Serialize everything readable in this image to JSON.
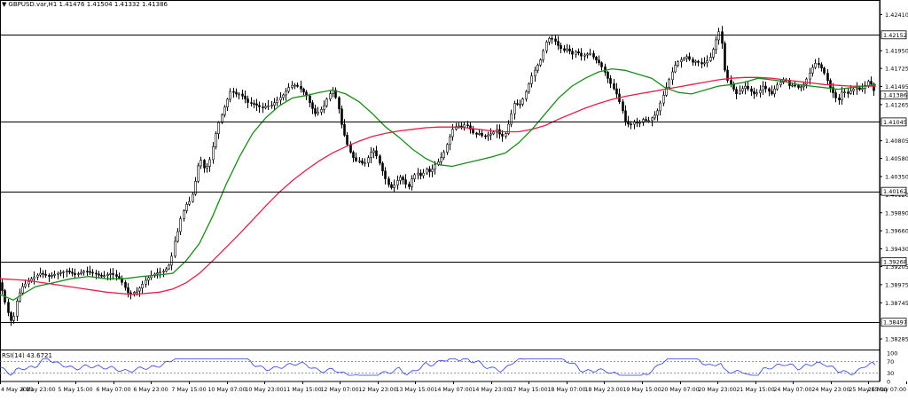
{
  "header": {
    "symbol_label": "GBPUSD.var,H1",
    "ohlc": "1.41476 1.41504 1.41332 1.41386",
    "dropdown_icon": "triangle-down-icon"
  },
  "rsi": {
    "label": "RSI(14) 43.6721",
    "levels": [
      30,
      70
    ],
    "axis_labels": [
      "100",
      "70",
      "30",
      "0"
    ],
    "line_color": "#2f3fd6"
  },
  "colors": {
    "candle": "#000000",
    "ma_fast": "#1a8a1a",
    "ma_slow": "#e0204a",
    "level_line": "#000000"
  },
  "chart_data": {
    "type": "candlestick",
    "symbol": "GBPUSD.var",
    "timeframe": "H1",
    "ylim": [
      1.3815,
      1.4255
    ],
    "y_ticks": [
      "1.42410",
      "1.42152",
      "1.41950",
      "1.41725",
      "1.41495",
      "1.41386",
      "1.41265",
      "1.41045",
      "1.40805",
      "1.40580",
      "1.40350",
      "1.40162",
      "1.40120",
      "1.39890",
      "1.39660",
      "1.39430",
      "1.39268",
      "1.39205",
      "1.38975",
      "1.38745",
      "1.38497",
      "1.38285"
    ],
    "highlighted_levels": [
      1.42152,
      1.41045,
      1.40162,
      1.39268,
      1.38497
    ],
    "current_price": 1.41386,
    "x_labels": [
      "4 May 2021",
      "4 May 23:00",
      "5 May 15:00",
      "6 May 07:00",
      "6 May 23:00",
      "7 May 15:00",
      "10 May 07:00",
      "10 May 23:00",
      "11 May 15:00",
      "12 May 07:00",
      "12 May 23:00",
      "13 May 15:00",
      "14 May 07:00",
      "14 May 23:00",
      "17 May 15:00",
      "18 May 07:00",
      "18 May 23:00",
      "19 May 15:00",
      "20 May 07:00",
      "20 May 23:00",
      "21 May 15:00",
      "24 May 07:00",
      "24 May 23:00",
      "25 May 15:00",
      "26 May 07:00"
    ],
    "price_path": [
      [
        0,
        1.39
      ],
      [
        4,
        1.388
      ],
      [
        8,
        1.3865
      ],
      [
        10,
        1.3855
      ],
      [
        13,
        1.385
      ],
      [
        16,
        1.386
      ],
      [
        19,
        1.388
      ],
      [
        25,
        1.3895
      ],
      [
        35,
        1.3905
      ],
      [
        45,
        1.3912
      ],
      [
        55,
        1.3908
      ],
      [
        65,
        1.3912
      ],
      [
        75,
        1.3915
      ],
      [
        85,
        1.391
      ],
      [
        95,
        1.3915
      ],
      [
        105,
        1.3912
      ],
      [
        115,
        1.3908
      ],
      [
        125,
        1.3912
      ],
      [
        135,
        1.3905
      ],
      [
        145,
        1.3885
      ],
      [
        155,
        1.389
      ],
      [
        165,
        1.3905
      ],
      [
        175,
        1.3912
      ],
      [
        185,
        1.3915
      ],
      [
        192,
        1.3925
      ],
      [
        196,
        1.395
      ],
      [
        200,
        1.3965
      ],
      [
        204,
        1.3985
      ],
      [
        210,
        1.4
      ],
      [
        215,
        1.4005
      ],
      [
        220,
        1.403
      ],
      [
        225,
        1.406
      ],
      [
        230,
        1.4045
      ],
      [
        235,
        1.405
      ],
      [
        240,
        1.4075
      ],
      [
        245,
        1.41
      ],
      [
        250,
        1.4115
      ],
      [
        255,
        1.413
      ],
      [
        260,
        1.4145
      ],
      [
        265,
        1.414
      ],
      [
        270,
        1.414
      ],
      [
        275,
        1.4135
      ],
      [
        280,
        1.4128
      ],
      [
        285,
        1.4128
      ],
      [
        290,
        1.4125
      ],
      [
        295,
        1.4122
      ],
      [
        300,
        1.4125
      ],
      [
        305,
        1.4125
      ],
      [
        310,
        1.413
      ],
      [
        315,
        1.4135
      ],
      [
        320,
        1.414
      ],
      [
        325,
        1.4148
      ],
      [
        330,
        1.4152
      ],
      [
        335,
        1.415
      ],
      [
        340,
        1.4145
      ],
      [
        345,
        1.4138
      ],
      [
        350,
        1.4125
      ],
      [
        355,
        1.4115
      ],
      [
        360,
        1.4118
      ],
      [
        365,
        1.4125
      ],
      [
        370,
        1.4138
      ],
      [
        375,
        1.4145
      ],
      [
        380,
        1.413
      ],
      [
        385,
        1.41
      ],
      [
        390,
        1.408
      ],
      [
        395,
        1.4065
      ],
      [
        400,
        1.4055
      ],
      [
        405,
        1.4055
      ],
      [
        410,
        1.405
      ],
      [
        415,
        1.406
      ],
      [
        420,
        1.407
      ],
      [
        425,
        1.406
      ],
      [
        430,
        1.4045
      ],
      [
        435,
        1.403
      ],
      [
        440,
        1.402
      ],
      [
        445,
        1.4025
      ],
      [
        450,
        1.4035
      ],
      [
        455,
        1.403
      ],
      [
        460,
        1.402
      ],
      [
        465,
        1.4035
      ],
      [
        470,
        1.404
      ],
      [
        475,
        1.4035
      ],
      [
        480,
        1.4045
      ],
      [
        485,
        1.404
      ],
      [
        490,
        1.405
      ],
      [
        495,
        1.4055
      ],
      [
        500,
        1.4065
      ],
      [
        505,
        1.408
      ],
      [
        510,
        1.4095
      ],
      [
        515,
        1.41
      ],
      [
        520,
        1.4098
      ],
      [
        525,
        1.4102
      ],
      [
        530,
        1.4095
      ],
      [
        535,
        1.4088
      ],
      [
        540,
        1.409
      ],
      [
        545,
        1.4085
      ],
      [
        550,
        1.4088
      ],
      [
        555,
        1.409
      ],
      [
        560,
        1.4095
      ],
      [
        565,
        1.4085
      ],
      [
        570,
        1.409
      ],
      [
        575,
        1.411
      ],
      [
        580,
        1.413
      ],
      [
        585,
        1.4125
      ],
      [
        590,
        1.4135
      ],
      [
        595,
        1.415
      ],
      [
        600,
        1.4165
      ],
      [
        605,
        1.4175
      ],
      [
        610,
        1.4185
      ],
      [
        615,
        1.4205
      ],
      [
        620,
        1.4212
      ],
      [
        625,
        1.4208
      ],
      [
        630,
        1.42
      ],
      [
        635,
        1.4195
      ],
      [
        640,
        1.4198
      ],
      [
        645,
        1.419
      ],
      [
        650,
        1.4195
      ],
      [
        655,
        1.4188
      ],
      [
        660,
        1.419
      ],
      [
        665,
        1.4192
      ],
      [
        670,
        1.4185
      ],
      [
        675,
        1.418
      ],
      [
        680,
        1.4172
      ],
      [
        685,
        1.416
      ],
      [
        690,
        1.415
      ],
      [
        695,
        1.414
      ],
      [
        700,
        1.4125
      ],
      [
        705,
        1.4105
      ],
      [
        710,
        1.41
      ],
      [
        715,
        1.4105
      ],
      [
        720,
        1.4102
      ],
      [
        725,
        1.4108
      ],
      [
        730,
        1.4105
      ],
      [
        735,
        1.411
      ],
      [
        740,
        1.4115
      ],
      [
        745,
        1.413
      ],
      [
        750,
        1.4145
      ],
      [
        755,
        1.416
      ],
      [
        760,
        1.4175
      ],
      [
        765,
        1.4182
      ],
      [
        770,
        1.4185
      ],
      [
        775,
        1.4188
      ],
      [
        780,
        1.418
      ],
      [
        785,
        1.4182
      ],
      [
        790,
        1.4178
      ],
      [
        795,
        1.418
      ],
      [
        800,
        1.4185
      ],
      [
        805,
        1.42
      ],
      [
        810,
        1.422
      ],
      [
        813,
        1.4215
      ],
      [
        816,
        1.4175
      ],
      [
        820,
        1.4158
      ],
      [
        825,
        1.415
      ],
      [
        830,
        1.414
      ],
      [
        835,
        1.4145
      ],
      [
        840,
        1.415
      ],
      [
        845,
        1.4145
      ],
      [
        850,
        1.414
      ],
      [
        855,
        1.4142
      ],
      [
        860,
        1.415
      ],
      [
        865,
        1.4145
      ],
      [
        870,
        1.414
      ],
      [
        875,
        1.415
      ],
      [
        880,
        1.4155
      ],
      [
        885,
        1.416
      ],
      [
        890,
        1.415
      ],
      [
        895,
        1.4152
      ],
      [
        900,
        1.4148
      ],
      [
        905,
        1.415
      ],
      [
        910,
        1.416
      ],
      [
        915,
        1.4172
      ],
      [
        920,
        1.418
      ],
      [
        925,
        1.4175
      ],
      [
        930,
        1.4165
      ],
      [
        935,
        1.415
      ],
      [
        940,
        1.414
      ],
      [
        945,
        1.413
      ],
      [
        950,
        1.4145
      ],
      [
        955,
        1.414
      ],
      [
        960,
        1.4145
      ],
      [
        965,
        1.4148
      ],
      [
        970,
        1.4145
      ],
      [
        975,
        1.415
      ],
      [
        980,
        1.4158
      ],
      [
        985,
        1.4145
      ],
      [
        988,
        1.4139
      ]
    ],
    "ma_fast_path": [
      [
        0,
        1.3885
      ],
      [
        15,
        1.3878
      ],
      [
        25,
        1.3885
      ],
      [
        40,
        1.3895
      ],
      [
        60,
        1.39
      ],
      [
        80,
        1.3905
      ],
      [
        100,
        1.3908
      ],
      [
        120,
        1.3905
      ],
      [
        140,
        1.3905
      ],
      [
        160,
        1.3908
      ],
      [
        180,
        1.391
      ],
      [
        195,
        1.3912
      ],
      [
        210,
        1.3928
      ],
      [
        225,
        1.395
      ],
      [
        240,
        1.3985
      ],
      [
        255,
        1.4025
      ],
      [
        270,
        1.406
      ],
      [
        285,
        1.409
      ],
      [
        300,
        1.411
      ],
      [
        315,
        1.4125
      ],
      [
        330,
        1.4135
      ],
      [
        345,
        1.4138
      ],
      [
        360,
        1.4142
      ],
      [
        375,
        1.4145
      ],
      [
        390,
        1.414
      ],
      [
        405,
        1.413
      ],
      [
        420,
        1.4115
      ],
      [
        435,
        1.4098
      ],
      [
        450,
        1.4085
      ],
      [
        465,
        1.407
      ],
      [
        480,
        1.4058
      ],
      [
        495,
        1.405
      ],
      [
        510,
        1.4048
      ],
      [
        525,
        1.4052
      ],
      [
        540,
        1.4056
      ],
      [
        555,
        1.406
      ],
      [
        570,
        1.4065
      ],
      [
        585,
        1.4078
      ],
      [
        600,
        1.4095
      ],
      [
        615,
        1.4115
      ],
      [
        630,
        1.4135
      ],
      [
        645,
        1.415
      ],
      [
        660,
        1.416
      ],
      [
        675,
        1.4168
      ],
      [
        690,
        1.4172
      ],
      [
        705,
        1.417
      ],
      [
        720,
        1.4165
      ],
      [
        735,
        1.416
      ],
      [
        750,
        1.4148
      ],
      [
        765,
        1.4142
      ],
      [
        780,
        1.414
      ],
      [
        795,
        1.4145
      ],
      [
        810,
        1.415
      ],
      [
        825,
        1.4152
      ],
      [
        840,
        1.4155
      ],
      [
        855,
        1.416
      ],
      [
        870,
        1.4158
      ],
      [
        885,
        1.4156
      ],
      [
        900,
        1.4152
      ],
      [
        915,
        1.415
      ],
      [
        930,
        1.4148
      ],
      [
        945,
        1.4146
      ],
      [
        960,
        1.4148
      ],
      [
        975,
        1.415
      ],
      [
        988,
        1.4152
      ]
    ],
    "ma_slow_path": [
      [
        0,
        1.3905
      ],
      [
        30,
        1.3903
      ],
      [
        60,
        1.3898
      ],
      [
        90,
        1.3893
      ],
      [
        120,
        1.3888
      ],
      [
        150,
        1.3885
      ],
      [
        180,
        1.3888
      ],
      [
        195,
        1.3892
      ],
      [
        210,
        1.39
      ],
      [
        225,
        1.3912
      ],
      [
        240,
        1.3928
      ],
      [
        255,
        1.3945
      ],
      [
        270,
        1.3962
      ],
      [
        285,
        1.398
      ],
      [
        300,
        1.3998
      ],
      [
        315,
        1.4015
      ],
      [
        330,
        1.403
      ],
      [
        345,
        1.4043
      ],
      [
        360,
        1.4055
      ],
      [
        375,
        1.4065
      ],
      [
        390,
        1.4073
      ],
      [
        405,
        1.408
      ],
      [
        420,
        1.4086
      ],
      [
        435,
        1.409
      ],
      [
        450,
        1.4093
      ],
      [
        465,
        1.4095
      ],
      [
        480,
        1.4097
      ],
      [
        495,
        1.4098
      ],
      [
        510,
        1.4098
      ],
      [
        525,
        1.4097
      ],
      [
        540,
        1.4095
      ],
      [
        555,
        1.4093
      ],
      [
        570,
        1.4092
      ],
      [
        585,
        1.4092
      ],
      [
        600,
        1.4095
      ],
      [
        615,
        1.41
      ],
      [
        630,
        1.4108
      ],
      [
        645,
        1.4115
      ],
      [
        660,
        1.4122
      ],
      [
        675,
        1.4128
      ],
      [
        690,
        1.4133
      ],
      [
        705,
        1.4137
      ],
      [
        720,
        1.414
      ],
      [
        735,
        1.4143
      ],
      [
        750,
        1.4146
      ],
      [
        765,
        1.4149
      ],
      [
        780,
        1.4152
      ],
      [
        795,
        1.4155
      ],
      [
        810,
        1.4158
      ],
      [
        825,
        1.416
      ],
      [
        840,
        1.4161
      ],
      [
        855,
        1.4161
      ],
      [
        870,
        1.416
      ],
      [
        885,
        1.4158
      ],
      [
        900,
        1.4156
      ],
      [
        915,
        1.4154
      ],
      [
        930,
        1.4152
      ],
      [
        945,
        1.4151
      ],
      [
        960,
        1.415
      ],
      [
        975,
        1.415
      ],
      [
        988,
        1.415
      ]
    ]
  }
}
